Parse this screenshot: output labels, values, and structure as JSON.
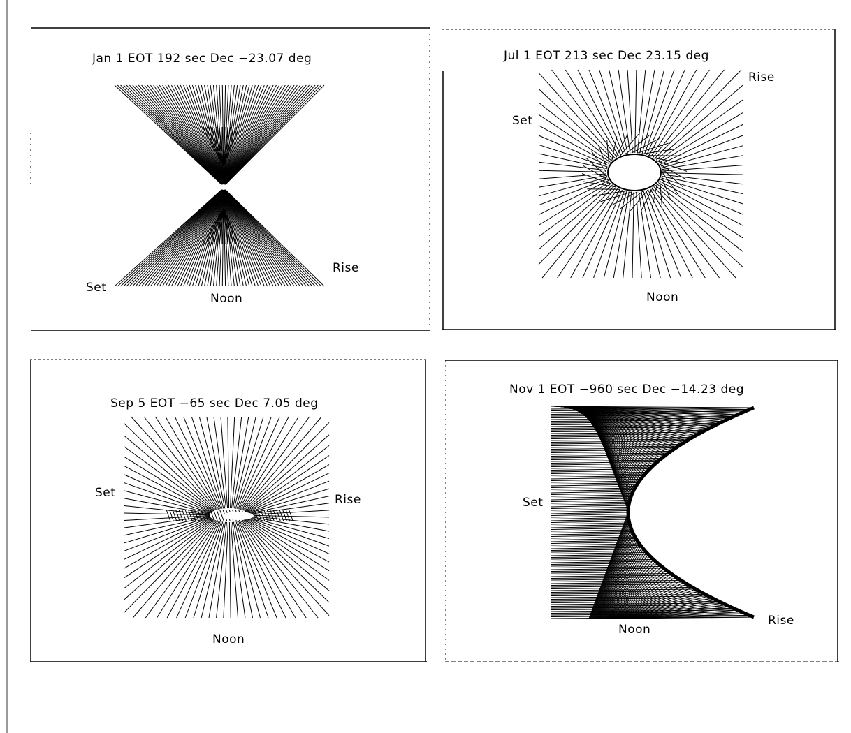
{
  "panels": [
    {
      "id": "jan1",
      "title": "Jan 1   EOT 192 sec   Dec −23.07 deg",
      "labels": {
        "set": "Set",
        "rise": "Rise",
        "noon": "Noon"
      },
      "shape": "hourglass"
    },
    {
      "id": "jul1",
      "title": "Jul 1   EOT 213 sec   Dec 23.15 deg",
      "labels": {
        "set": "Set",
        "rise": "Rise",
        "noon": "Noon"
      },
      "shape": "hole"
    },
    {
      "id": "sep5",
      "title": "Sep 5   EOT −65 sec  Dec 7.05 deg",
      "labels": {
        "set": "Set",
        "rise": "Rise",
        "noon": "Noon"
      },
      "shape": "flat-hole"
    },
    {
      "id": "nov1",
      "title": "Nov 1   EOT −960 sec   Dec −14.23 deg",
      "labels": {
        "set": "Set",
        "rise": "Rise",
        "noon": "Noon"
      },
      "shape": "parabola"
    }
  ],
  "colors": {
    "ink": "#000000",
    "paper": "#ffffff",
    "rule": "#9a9a9a"
  }
}
